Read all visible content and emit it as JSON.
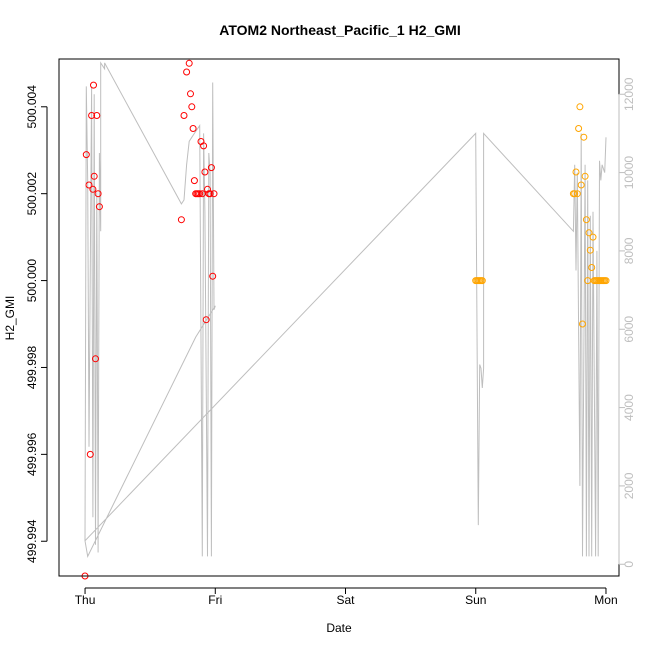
{
  "chart_data": {
    "type": "scatter",
    "title": "ATOM2 Northeast_Pacific_1 H2_GMI",
    "xlabel": "Date",
    "ylabel": "H2_GMI",
    "x_ticks": [
      {
        "label": "Thu",
        "day": 0
      },
      {
        "label": "Fri",
        "day": 1
      },
      {
        "label": "Sat",
        "day": 2
      },
      {
        "label": "Sun",
        "day": 3
      },
      {
        "label": "Mon",
        "day": 4
      }
    ],
    "xlim": [
      -0.2,
      4.1
    ],
    "ylim": [
      499.9932,
      500.0051
    ],
    "y_ticks": [
      499.994,
      499.996,
      499.998,
      500.0,
      500.002,
      500.004
    ],
    "y_tick_labels": [
      "499.994",
      "499.996",
      "499.998",
      "500.000",
      "500.002",
      "500.004"
    ],
    "y2_ticks": [
      0,
      2000,
      4000,
      6000,
      8000,
      10000,
      12000
    ],
    "y2_tick_labels": [
      "0",
      "2000",
      "4000",
      "6000",
      "8000",
      "10000",
      "12000"
    ],
    "y2lim": [
      -300,
      12900
    ],
    "colors": {
      "series_red": "#ff0000",
      "series_orange": "#ffa500",
      "altitude_line": "#bebebe",
      "axis": "#000000",
      "right_axis": "#bebebe"
    },
    "series": [
      {
        "color": "red",
        "x": [
          0.0,
          0.01,
          0.03,
          0.04,
          0.05,
          0.06,
          0.065,
          0.07,
          0.08,
          0.09,
          0.1,
          0.11,
          0.74,
          0.76,
          0.78,
          0.8,
          0.81,
          0.82,
          0.83,
          0.84,
          0.85,
          0.86,
          0.87,
          0.88,
          0.89,
          0.9,
          0.91,
          0.92,
          0.93,
          0.94,
          0.95,
          0.96,
          0.97,
          0.98,
          0.99
        ],
        "y": [
          499.9932,
          500.0029,
          500.0022,
          499.996,
          500.0038,
          500.0021,
          500.0045,
          500.0024,
          499.9982,
          500.0038,
          500.002,
          500.0017,
          500.0014,
          500.0038,
          500.0048,
          500.005,
          500.0043,
          500.004,
          500.0035,
          500.0023,
          500.002,
          500.002,
          500.002,
          500.002,
          500.0032,
          500.002,
          500.0031,
          500.0025,
          499.9991,
          500.0021,
          500.002,
          500.002,
          500.0026,
          500.0001,
          500.002
        ]
      },
      {
        "color": "orange",
        "x": [
          3.0,
          3.01,
          3.02,
          3.03,
          3.04,
          3.05,
          3.75,
          3.76,
          3.77,
          3.78,
          3.79,
          3.8,
          3.81,
          3.82,
          3.83,
          3.84,
          3.85,
          3.86,
          3.87,
          3.88,
          3.89,
          3.9,
          3.91,
          3.92,
          3.93,
          3.94,
          3.95,
          3.96,
          3.97,
          3.98,
          3.99,
          4.0
        ],
        "y": [
          500.0,
          500.0,
          500.0,
          500.0,
          500.0,
          500.0,
          500.002,
          500.002,
          500.0025,
          500.002,
          500.0035,
          500.004,
          500.0022,
          499.999,
          500.0033,
          500.0024,
          500.0014,
          500.0,
          500.0011,
          500.0007,
          500.0003,
          500.001,
          500.0,
          500.0,
          500.0,
          500.0,
          500.0,
          500.0,
          500.0,
          500.0,
          500.0,
          500.0
        ]
      }
    ],
    "altitude_track": {
      "x": [
        0.0,
        0.01,
        0.02,
        0.03,
        0.05,
        0.06,
        0.07,
        0.08,
        0.09,
        0.1,
        0.11,
        0.12,
        0.12,
        0.13,
        0.14,
        0.15,
        0.15,
        0.74,
        0.76,
        0.78,
        0.8,
        0.81,
        0.82,
        0.84,
        0.86,
        0.88,
        0.9,
        0.91,
        0.92,
        0.94,
        0.95,
        0.96,
        0.97,
        0.98,
        0.99,
        1.0,
        1.0,
        0.85,
        0.02,
        0.0,
        3.0,
        3.02,
        3.03,
        3.04,
        3.05,
        3.06,
        3.06,
        3.75,
        3.76,
        3.77,
        3.78,
        3.8,
        3.81,
        3.82,
        3.84,
        3.85,
        3.86,
        3.87,
        3.88,
        3.89,
        3.9,
        3.92,
        3.93,
        3.94,
        3.95,
        3.96,
        3.97,
        3.99,
        4.0
      ],
      "y": [
        600,
        12200,
        9800,
        3000,
        12200,
        1200,
        12000,
        500,
        9500,
        300,
        10500,
        8500,
        12800,
        12750,
        12700,
        12650,
        12800,
        9200,
        9300,
        10200,
        10800,
        10850,
        10900,
        11000,
        11100,
        11200,
        200,
        11000,
        9000,
        200,
        10500,
        10000,
        200,
        12300,
        6500,
        6600,
        6600,
        5800,
        200,
        600,
        11000,
        1000,
        5100,
        5000,
        4500,
        5000,
        11000,
        8500,
        10200,
        7500,
        10000,
        2000,
        11000,
        200,
        10200,
        200,
        9800,
        200,
        8900,
        200,
        9000,
        200,
        8000,
        200,
        10300,
        9800,
        10200,
        10000,
        10900
      ]
    }
  }
}
